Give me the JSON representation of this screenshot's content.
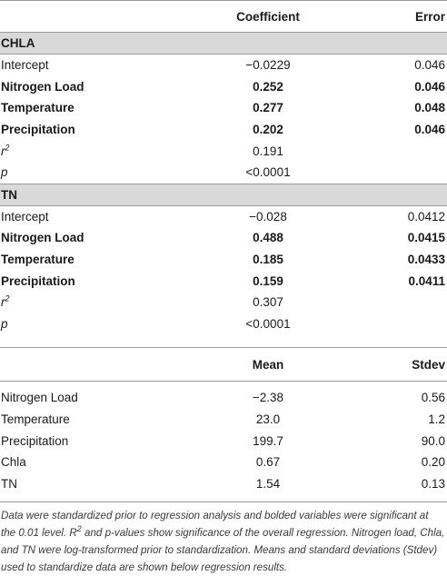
{
  "header": {
    "col1": "",
    "col2": "Coefficient",
    "col3": "Error"
  },
  "sections": [
    {
      "title": "CHLA",
      "rows": [
        {
          "label": "Intercept",
          "coef": "−0.0229",
          "err": "0.046",
          "bold": false
        },
        {
          "label": "Nitrogen Load",
          "coef": "0.252",
          "err": "0.046",
          "bold": true
        },
        {
          "label": "Temperature",
          "coef": "0.277",
          "err": "0.048",
          "bold": true
        },
        {
          "label": "Precipitation",
          "coef": "0.202",
          "err": "0.046",
          "bold": true
        }
      ],
      "r2": "0.191",
      "p": "<0.0001"
    },
    {
      "title": "TN",
      "rows": [
        {
          "label": "Intercept",
          "coef": "−0.028",
          "err": "0.0412",
          "bold": false
        },
        {
          "label": "Nitrogen Load",
          "coef": "0.488",
          "err": "0.0415",
          "bold": true
        },
        {
          "label": "Temperature",
          "coef": "0.185",
          "err": "0.0433",
          "bold": true
        },
        {
          "label": "Precipitation",
          "coef": "0.159",
          "err": "0.0411",
          "bold": true
        }
      ],
      "r2": "0.307",
      "p": "<0.0001"
    }
  ],
  "stat_labels": {
    "r_base": "r",
    "r_exp": "2",
    "p": "p"
  },
  "header2": {
    "col1": "",
    "col2": "Mean",
    "col3": "Stdev"
  },
  "stats": [
    {
      "label": "Nitrogen Load",
      "mean": "−2.38",
      "stdev": "0.56"
    },
    {
      "label": "Temperature",
      "mean": "23.0",
      "stdev": "1.2"
    },
    {
      "label": "Precipitation",
      "mean": "199.7",
      "stdev": "90.0"
    },
    {
      "label": "Chla",
      "mean": "0.67",
      "stdev": "0.20"
    },
    {
      "label": "TN",
      "mean": "1.54",
      "stdev": "0.13"
    }
  ],
  "footnote": {
    "part1": "Data were standardized prior to regression analysis and bolded variables were significant at the 0.01 level. R",
    "sup": "2",
    "part2": " and p-values show significance of the overall regression. Nitrogen load, Chla, and TN were log-transformed prior to standardization. Means and standard deviations (Stdev) used to standardize data are shown below regression results."
  }
}
